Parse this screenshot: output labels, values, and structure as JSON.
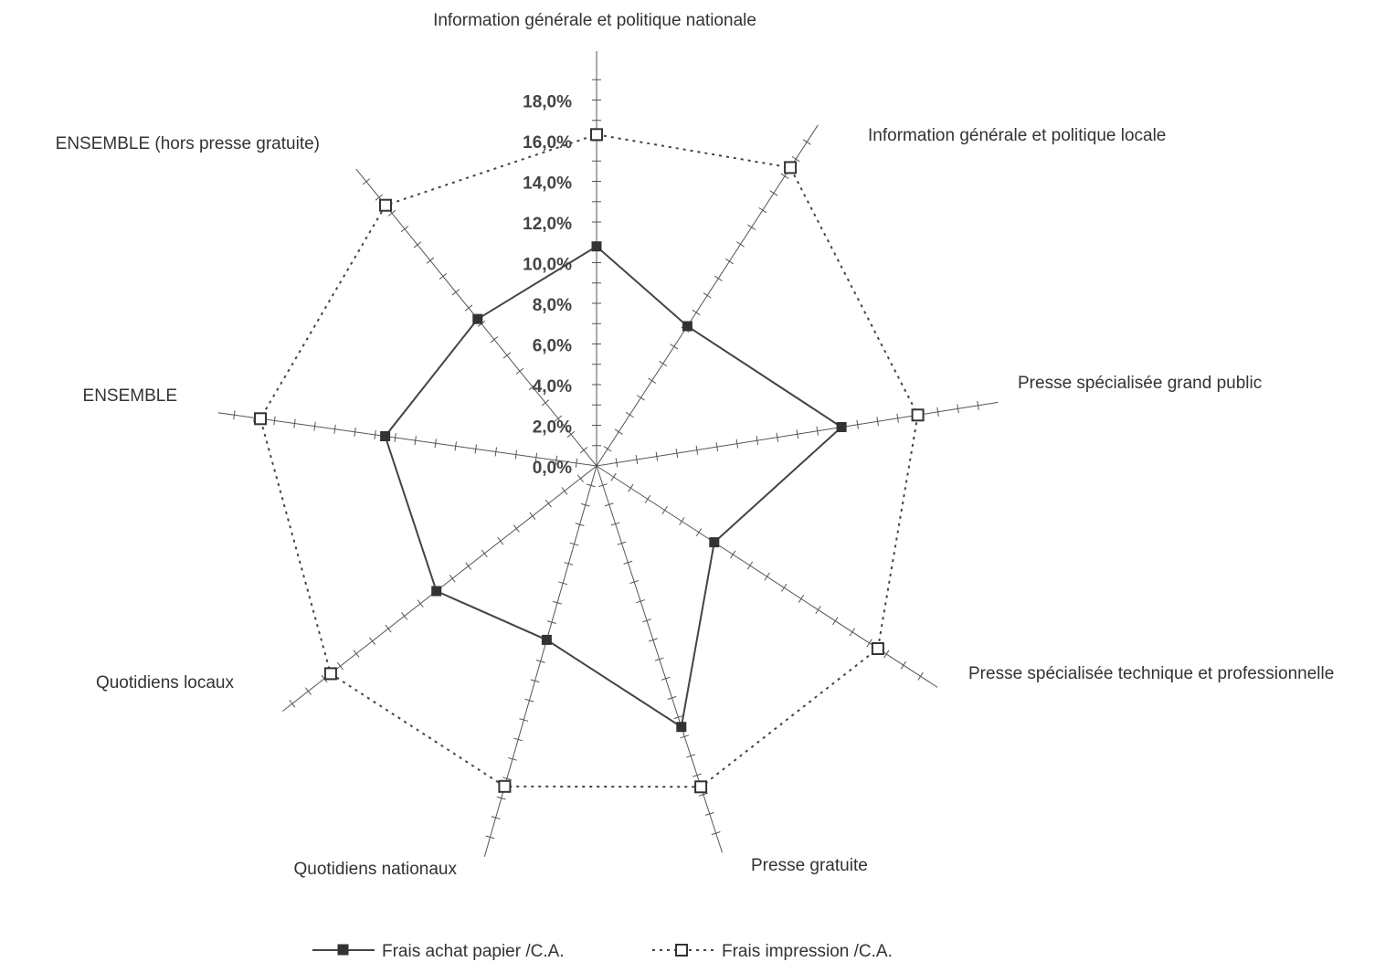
{
  "chart_data": {
    "type": "radar",
    "axes": [
      "Information générale et politique nationale",
      "Information générale et politique locale",
      "Presse spécialisée grand public",
      "Presse spécialisée technique et professionnelle",
      "Presse gratuite",
      "Quotidiens nationaux",
      "Quotidiens locaux",
      "ENSEMBLE",
      "ENSEMBLE  (hors presse gratuite)"
    ],
    "tick_labels": [
      "0,0%",
      "2,0%",
      "4,0%",
      "6,0%",
      "8,0%",
      "10,0%",
      "12,0%",
      "14,0%",
      "16,0%",
      "18,0%"
    ],
    "rlim": [
      0,
      20
    ],
    "series": [
      {
        "name": "Frais achat papier /C.A.",
        "marker": "filled-square",
        "line": "solid",
        "values": [
          10.8,
          8.2,
          12.2,
          6.9,
          13.5,
          8.9,
          10.0,
          10.5,
          9.3
        ]
      },
      {
        "name": "Frais impression /C.A.",
        "marker": "open-square",
        "line": "dotted",
        "values": [
          16.3,
          17.5,
          16.0,
          16.5,
          16.6,
          16.4,
          16.6,
          16.7,
          16.5
        ]
      }
    ],
    "legend_position": "bottom"
  }
}
